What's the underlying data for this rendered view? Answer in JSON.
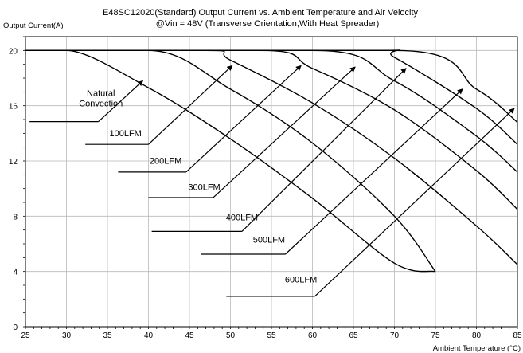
{
  "chart_data": {
    "type": "line",
    "title": "E48SC12020(Standard) Output Current vs. Ambient Temperature and Air Velocity",
    "subtitle": "@Vin = 48V (Transverse Orientation,With Heat Spreader)",
    "xlabel": "Ambient Temperature (°C)",
    "ylabel": "Output Current(A)",
    "xlim": [
      25,
      85
    ],
    "ylim": [
      0,
      21
    ],
    "xticks": [
      25,
      30,
      35,
      40,
      45,
      50,
      55,
      60,
      65,
      70,
      75,
      80,
      85
    ],
    "yticks": [
      0,
      4,
      8,
      12,
      16,
      20
    ],
    "grid": true,
    "series": [
      {
        "name": "Natural Convection",
        "x": [
          25,
          30,
          40,
          50,
          60,
          70,
          75
        ],
        "y": [
          20,
          20,
          17.3,
          13.6,
          9.3,
          4.6,
          4
        ]
      },
      {
        "name": "100LFM",
        "x": [
          25,
          40,
          50,
          60,
          70,
          75
        ],
        "y": [
          20,
          20,
          17.2,
          13.3,
          8.0,
          4
        ]
      },
      {
        "name": "200LFM",
        "x": [
          25,
          47,
          50,
          60,
          70,
          80,
          85
        ],
        "y": [
          20,
          20,
          19.3,
          16.2,
          12.2,
          7.3,
          4.5
        ]
      },
      {
        "name": "300LFM",
        "x": [
          25,
          53.5,
          60,
          70,
          80,
          85
        ],
        "y": [
          20,
          20,
          18.7,
          15.7,
          11.3,
          8.5
        ]
      },
      {
        "name": "400LFM",
        "x": [
          25,
          60,
          70,
          80,
          85
        ],
        "y": [
          20,
          20,
          17.8,
          13.8,
          11.2
        ]
      },
      {
        "name": "500LFM",
        "x": [
          25,
          67,
          70,
          80,
          85
        ],
        "y": [
          20,
          20,
          19.5,
          15.8,
          13.2
        ]
      },
      {
        "name": "600LFM",
        "x": [
          25,
          70,
          80,
          85
        ],
        "y": [
          20,
          20,
          17.2,
          14.8
        ]
      }
    ],
    "annotations": [
      {
        "lines": [
          "Natural",
          "Convection"
        ],
        "series": "Natural Convection",
        "text_at": [
          34.2,
          16.7
        ],
        "leader_x": [
          25.5,
          33.9
        ],
        "leader_y": 14.85,
        "arrow_to": [
          39.3,
          17.8
        ]
      },
      {
        "lines": [
          "100LFM"
        ],
        "series": "100LFM",
        "text_at": [
          37.2,
          13.8
        ],
        "leader_x": [
          32.3,
          40.0
        ],
        "leader_y": 13.2,
        "arrow_to": [
          50.2,
          18.9
        ]
      },
      {
        "lines": [
          "200LFM"
        ],
        "series": "200LFM",
        "text_at": [
          42.1,
          11.8
        ],
        "leader_x": [
          36.3,
          44.6
        ],
        "leader_y": 11.2,
        "arrow_to": [
          58.6,
          18.9
        ]
      },
      {
        "lines": [
          "300LFM"
        ],
        "series": "300LFM",
        "text_at": [
          46.8,
          9.9
        ],
        "leader_x": [
          40.0,
          47.9
        ],
        "leader_y": 9.35,
        "arrow_to": [
          65.2,
          18.8
        ]
      },
      {
        "lines": [
          "400LFM"
        ],
        "series": "400LFM",
        "text_at": [
          51.4,
          7.7
        ],
        "leader_x": [
          40.4,
          51.4
        ],
        "leader_y": 6.9,
        "arrow_to": [
          71.4,
          18.7
        ]
      },
      {
        "lines": [
          "500LFM"
        ],
        "series": "500LFM",
        "text_at": [
          54.7,
          6.1
        ],
        "leader_x": [
          46.4,
          56.7
        ],
        "leader_y": 5.25,
        "arrow_to": [
          78.3,
          17.2
        ]
      },
      {
        "lines": [
          "600LFM"
        ],
        "series": "600LFM",
        "text_at": [
          58.6,
          3.2
        ],
        "leader_x": [
          49.5,
          60.3
        ],
        "leader_y": 2.2,
        "arrow_to": [
          84.6,
          15.8
        ]
      }
    ]
  }
}
